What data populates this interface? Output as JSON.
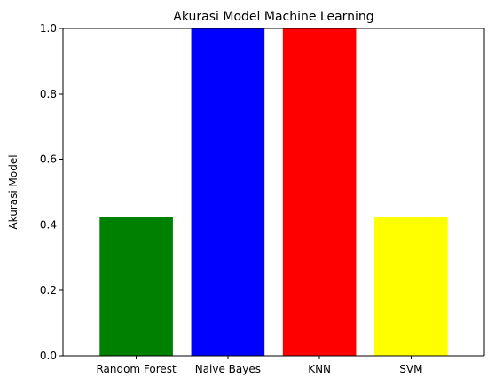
{
  "chart_data": {
    "type": "bar",
    "title": "Akurasi Model Machine Learning",
    "xlabel": "",
    "ylabel": "Akurasi Model",
    "categories": [
      "Random Forest",
      "Naive Bayes",
      "KNN",
      "SVM"
    ],
    "values": [
      0.4231,
      1.0,
      1.0,
      0.4231
    ],
    "colors": [
      "#008000",
      "#0000ff",
      "#ff0000",
      "#ffff00"
    ],
    "ylim": [
      0,
      1.0
    ],
    "yticks": [
      "0.0",
      "0.2",
      "0.4",
      "0.6",
      "0.8",
      "1.0"
    ],
    "grid": false,
    "legend": "none"
  }
}
